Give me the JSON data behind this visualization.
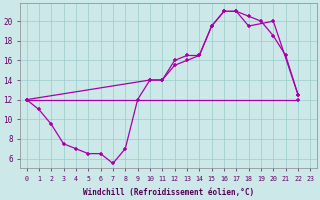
{
  "bg_color": "#cce8e8",
  "line_color": "#aa00aa",
  "grid_color": "#99cccc",
  "xlabel": "Windchill (Refroidissement éolien,°C)",
  "xlim": [
    -0.5,
    23.5
  ],
  "ylim": [
    5.0,
    21.8
  ],
  "yticks": [
    6,
    8,
    10,
    12,
    14,
    16,
    18,
    20
  ],
  "curve1_x": [
    0,
    1,
    2,
    3,
    4,
    5,
    6,
    7,
    8,
    9,
    10,
    11,
    12,
    13,
    14,
    15,
    16,
    17,
    18,
    19,
    20,
    21,
    22
  ],
  "curve1_y": [
    12,
    11,
    9.5,
    7.5,
    7.0,
    6.5,
    6.5,
    5.5,
    7.0,
    12.0,
    14.0,
    14.0,
    16.0,
    16.5,
    16.5,
    19.5,
    21.0,
    21.0,
    20.5,
    20.0,
    18.5,
    16.5,
    12.5
  ],
  "curve2_x": [
    0,
    10,
    11,
    12,
    13,
    14,
    15,
    16,
    17,
    18,
    20,
    22
  ],
  "curve2_y": [
    12,
    14,
    14,
    15.5,
    16.0,
    16.5,
    19.5,
    21.0,
    21.0,
    19.5,
    20.0,
    12.5
  ],
  "curve3_x": [
    0,
    22
  ],
  "curve3_y": [
    12,
    12.0
  ]
}
